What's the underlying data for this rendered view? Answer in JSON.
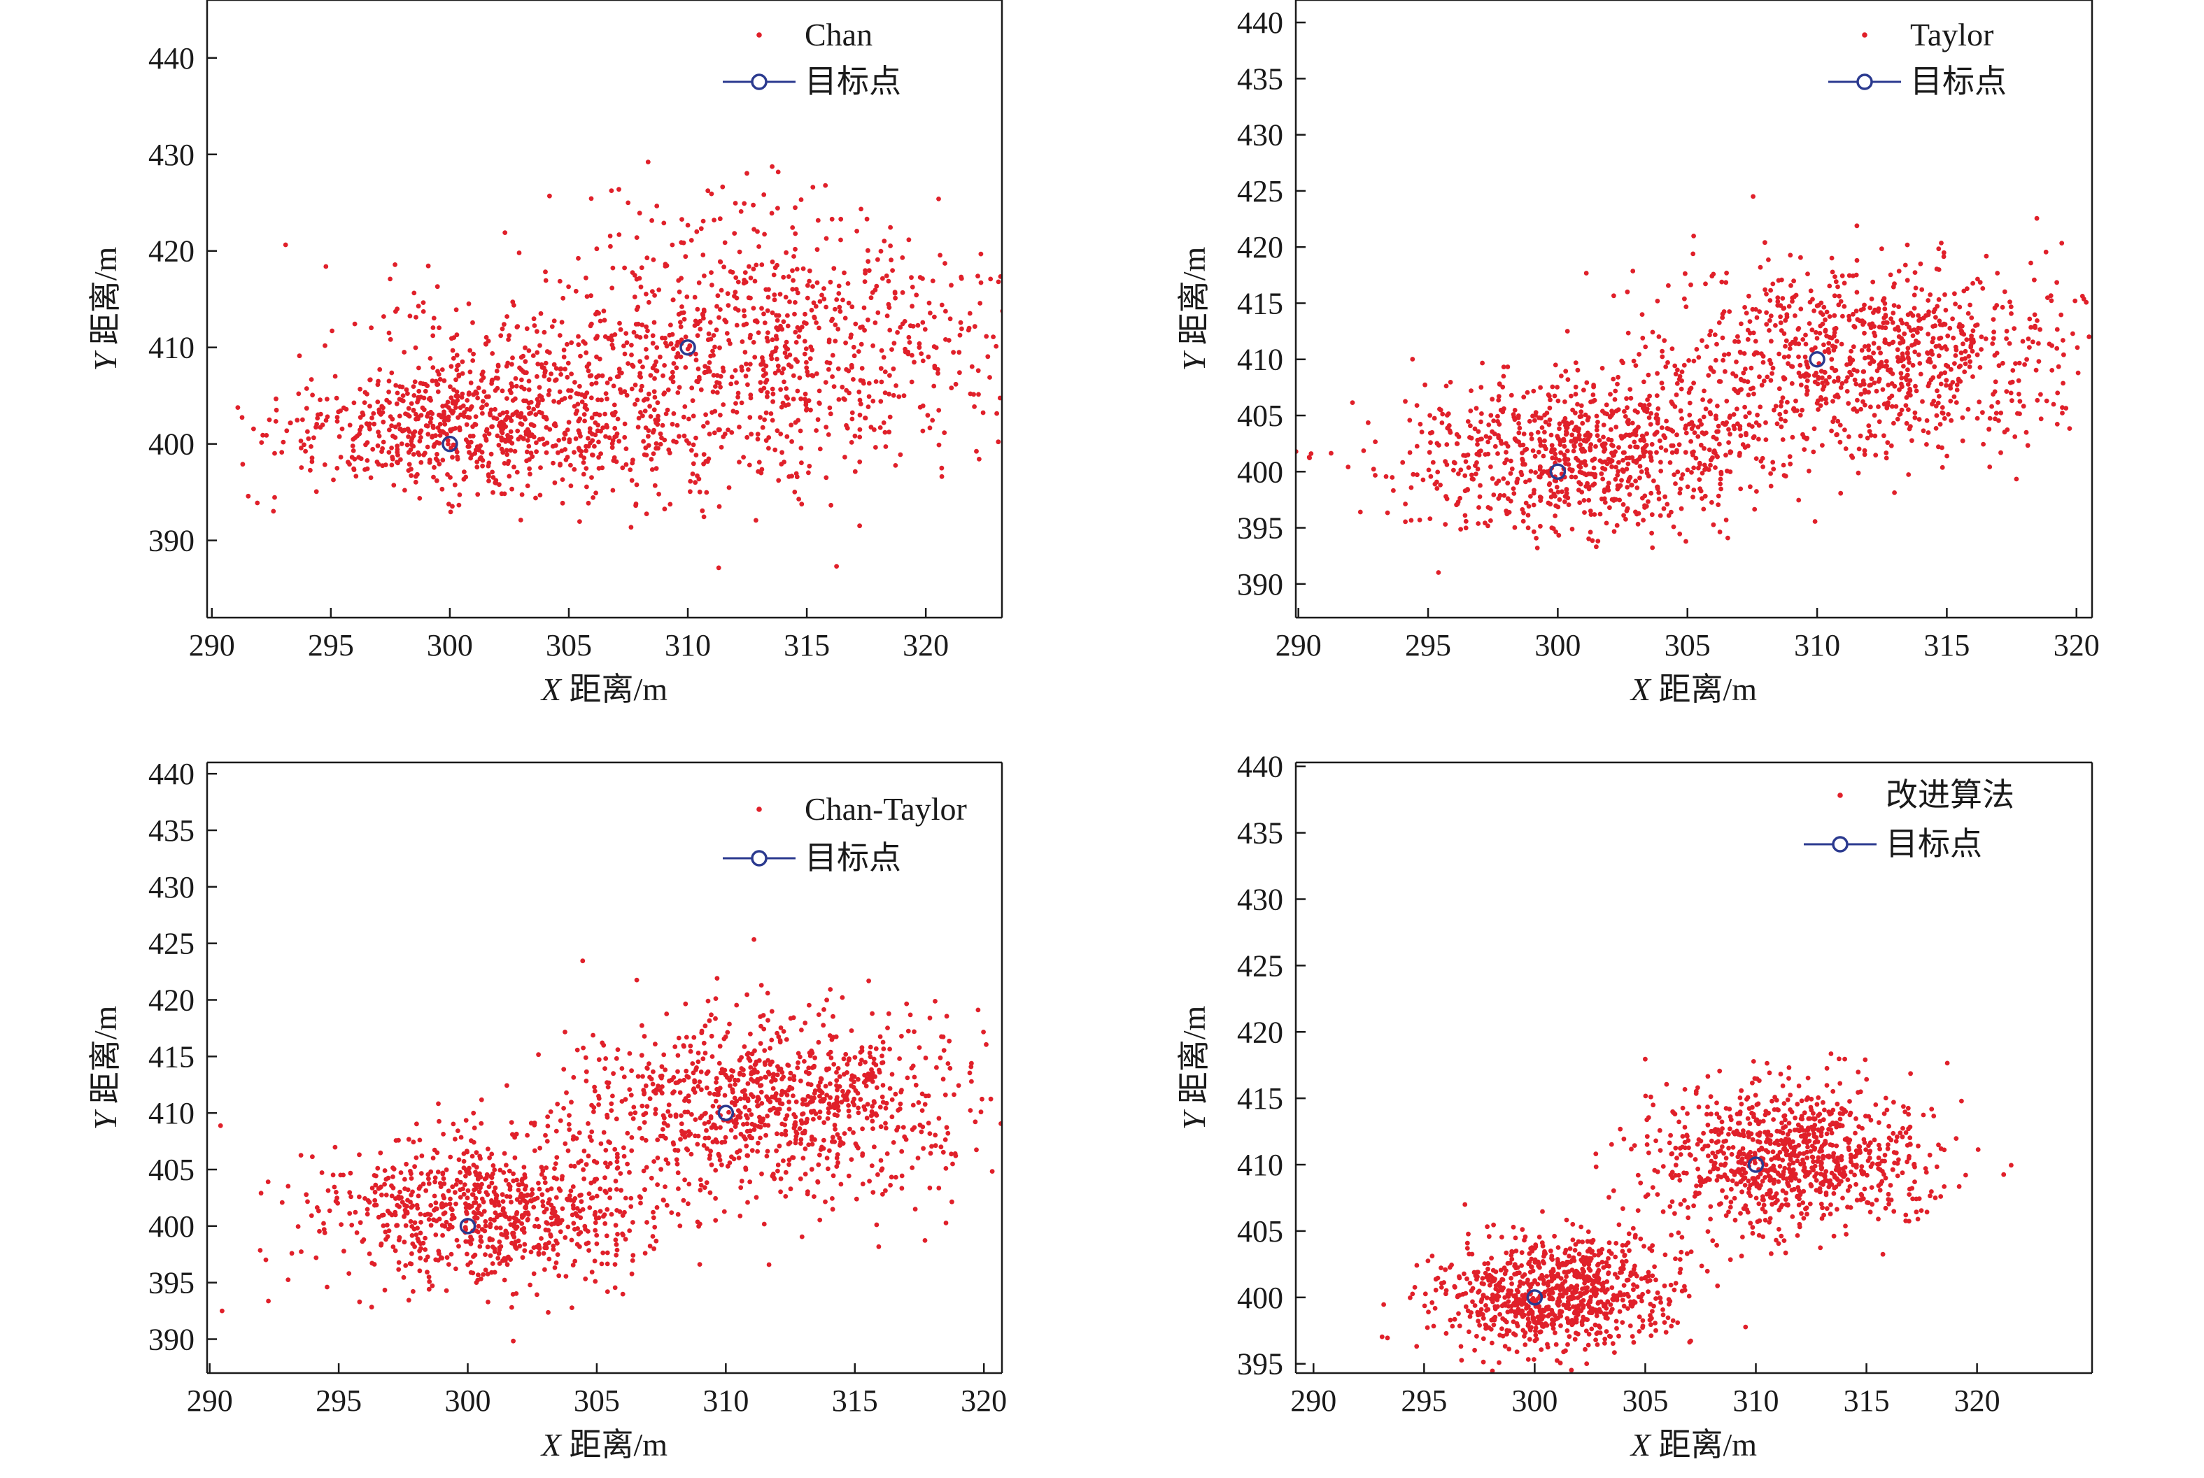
{
  "figure": {
    "colors": {
      "points": "#e0202a",
      "target": "#2b3a8f",
      "axis": "#1a1a1a",
      "background": "#ffffff"
    },
    "point_count_per_panel": 1800
  },
  "chart_data": [
    {
      "type": "scatter",
      "xlabel_var": "X",
      "xlabel_rest": " 距离/m",
      "ylabel_var": "Y",
      "ylabel_rest": " 距离/m",
      "xlim": [
        289.8,
        323.2
      ],
      "ylim": [
        382,
        446
      ],
      "xticks": [
        290,
        295,
        300,
        305,
        310,
        315,
        320
      ],
      "yticks": [
        390,
        400,
        410,
        420,
        430,
        440
      ],
      "legend_position": "top-right",
      "series": [
        {
          "name": "Chan",
          "marker": "dot",
          "distribution": [
            {
              "center": [
                300,
                401.5
              ],
              "sd": [
                3.6,
                3.4
              ],
              "rotation_deg": 18,
              "weight": 0.32
            },
            {
              "center": [
                305.5,
                404.5
              ],
              "sd": [
                3.6,
                6.0
              ],
              "rotation_deg": 30,
              "weight": 0.22
            },
            {
              "center": [
                314,
                411
              ],
              "sd": [
                5.2,
                6.8
              ],
              "rotation_deg": 12,
              "weight": 0.46
            }
          ]
        },
        {
          "name": "目标点",
          "marker": "circle-line",
          "points": [
            [
              300,
              400
            ],
            [
              310,
              410
            ]
          ]
        }
      ]
    },
    {
      "type": "scatter",
      "xlabel_var": "X",
      "xlabel_rest": " 距离/m",
      "ylabel_var": "Y",
      "ylabel_rest": " 距离/m",
      "xlim": [
        289.9,
        320.6
      ],
      "ylim": [
        387,
        442
      ],
      "xticks": [
        290,
        295,
        300,
        305,
        310,
        315,
        320
      ],
      "yticks": [
        390,
        395,
        400,
        405,
        410,
        415,
        420,
        425,
        430,
        435,
        440
      ],
      "legend_position": "top-right",
      "series": [
        {
          "name": "Taylor",
          "marker": "dot",
          "distribution": [
            {
              "center": [
                301,
                401.5
              ],
              "sd": [
                3.6,
                3.4
              ],
              "rotation_deg": 12,
              "weight": 0.48
            },
            {
              "center": [
                312,
                410
              ],
              "sd": [
                4.2,
                4.2
              ],
              "rotation_deg": 12,
              "weight": 0.52
            }
          ]
        },
        {
          "name": "目标点",
          "marker": "circle-line",
          "points": [
            [
              300,
              400
            ],
            [
              310,
              410
            ]
          ]
        }
      ]
    },
    {
      "type": "scatter",
      "xlabel_var": "X",
      "xlabel_rest": " 距离/m",
      "ylabel_var": "Y",
      "ylabel_rest": " 距离/m",
      "xlim": [
        289.9,
        320.7
      ],
      "ylim": [
        387,
        441
      ],
      "xticks": [
        290,
        295,
        300,
        305,
        310,
        315,
        320
      ],
      "yticks": [
        390,
        395,
        400,
        405,
        410,
        415,
        420,
        425,
        430,
        435,
        440
      ],
      "legend_position": "top-right",
      "series": [
        {
          "name": "Chan-Taylor",
          "marker": "dot",
          "distribution": [
            {
              "center": [
                301,
                401.5
              ],
              "sd": [
                3.5,
                3.2
              ],
              "rotation_deg": 12,
              "weight": 0.47
            },
            {
              "center": [
                312,
                410.5
              ],
              "sd": [
                4.0,
                4.0
              ],
              "rotation_deg": 12,
              "weight": 0.53
            }
          ]
        },
        {
          "name": "目标点",
          "marker": "circle-line",
          "points": [
            [
              300,
              400
            ],
            [
              310,
              410
            ]
          ]
        }
      ]
    },
    {
      "type": "scatter",
      "xlabel_var": "X",
      "xlabel_rest": " 距离/m",
      "ylabel_var": "Y",
      "ylabel_rest": " 距离/m",
      "xlim": [
        289.2,
        325.2
      ],
      "ylim": [
        394.3,
        440.3
      ],
      "xticks": [
        290,
        295,
        300,
        305,
        310,
        315,
        320
      ],
      "yticks": [
        395,
        400,
        405,
        410,
        415,
        420,
        425,
        430,
        435,
        440
      ],
      "legend_position": "top-right",
      "series": [
        {
          "name": "改进算法",
          "marker": "dot",
          "distribution": [
            {
              "center": [
                301,
                400.5
              ],
              "sd": [
                2.7,
                2.1
              ],
              "rotation_deg": 15,
              "weight": 0.5
            },
            {
              "center": [
                311.5,
                410.5
              ],
              "sd": [
                3.2,
                2.7
              ],
              "rotation_deg": 15,
              "weight": 0.5
            }
          ]
        },
        {
          "name": "目标点",
          "marker": "circle-line",
          "points": [
            [
              300,
              400
            ],
            [
              310,
              410
            ]
          ]
        }
      ]
    }
  ]
}
